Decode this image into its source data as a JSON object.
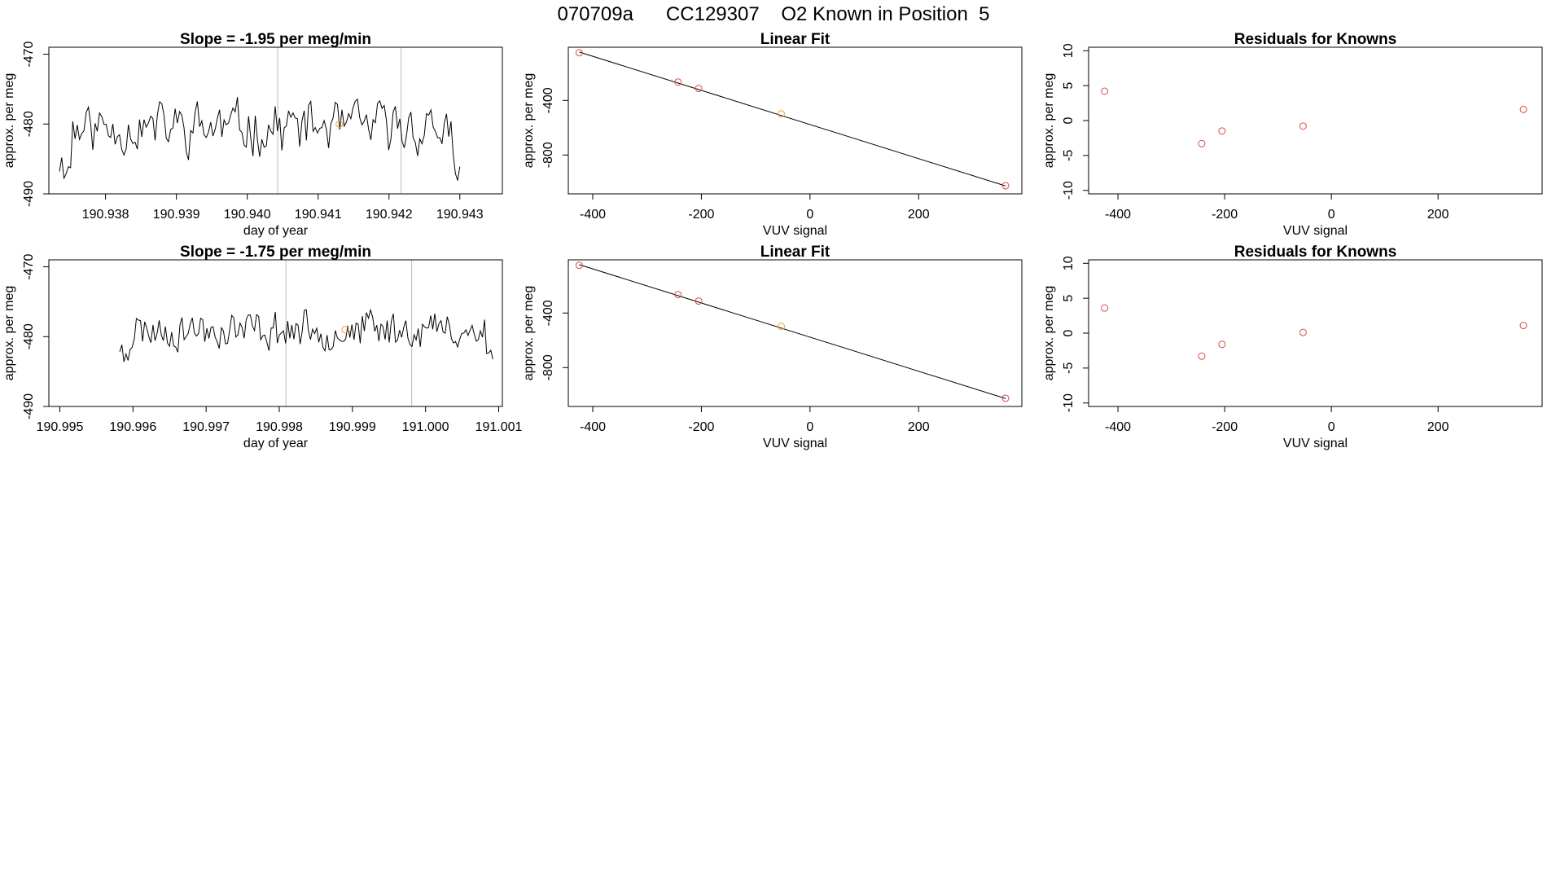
{
  "figure_title": "070709a      CC129307    O2 Known in Position  5",
  "colors": {
    "line": "#000000",
    "point": "#d94a4a",
    "highlight": "#f0a030",
    "marker_line": "#bbbbbb",
    "frame": "#000000"
  },
  "chart_data": [
    {
      "id": "ts1",
      "type": "line",
      "title": "Slope =  -1.95  per meg/min",
      "xlabel": "day of year",
      "ylabel": "approx. per meg",
      "xlim": [
        190.9372,
        190.9436
      ],
      "ylim": [
        -490,
        -469
      ],
      "xticks": [
        190.938,
        190.939,
        190.94,
        190.941,
        190.942,
        190.943
      ],
      "xtick_labels": [
        "190.938",
        "190.939",
        "190.940",
        "190.941",
        "190.942",
        "190.943"
      ],
      "yticks": [
        -470,
        -480,
        -490
      ],
      "ytick_labels": [
        "-470",
        "-480",
        "-490"
      ],
      "x_start": 190.93735,
      "x_end": 190.943,
      "vlines": [
        190.94043,
        190.94217
      ],
      "highlight_point": {
        "x": 190.9413,
        "y": -480.0
      },
      "series_seed": 11,
      "series_mean": -480.5,
      "series_amp": 4.8
    },
    {
      "id": "fit1",
      "type": "scatter",
      "title": "Linear Fit",
      "xlabel": "VUV signal",
      "ylabel": "approx. per meg",
      "xlim": [
        -445,
        390
      ],
      "ylim": [
        -1085,
        -10
      ],
      "xticks": [
        -400,
        -200,
        0,
        200
      ],
      "xtick_labels": [
        "-400",
        "-200",
        "0",
        "200"
      ],
      "yticks": [
        -400,
        -800
      ],
      "ytick_labels": [
        "-400",
        "-800"
      ],
      "points": [
        {
          "x": -425,
          "y": -50
        },
        {
          "x": -243,
          "y": -265
        },
        {
          "x": -205,
          "y": -312
        },
        {
          "x": -53,
          "y": -498,
          "highlight": true
        },
        {
          "x": 360,
          "y": -1025
        }
      ],
      "fit_line": {
        "x0": -425,
        "y0": -45,
        "x1": 360,
        "y1": -1027
      }
    },
    {
      "id": "res1",
      "type": "scatter",
      "title": "Residuals for Knowns",
      "xlabel": "VUV signal",
      "ylabel": "approx. per meg",
      "xlim": [
        -455,
        395
      ],
      "ylim": [
        -10.5,
        10.5
      ],
      "xticks": [
        -400,
        -200,
        0,
        200
      ],
      "xtick_labels": [
        "-400",
        "-200",
        "0",
        "200"
      ],
      "yticks": [
        10,
        5,
        0,
        -5,
        -10
      ],
      "ytick_labels": [
        "10",
        "5",
        "0",
        "-5",
        "-10"
      ],
      "points": [
        {
          "x": -425,
          "y": 4.2
        },
        {
          "x": -243,
          "y": -3.3
        },
        {
          "x": -205,
          "y": -1.5
        },
        {
          "x": -53,
          "y": -0.8
        },
        {
          "x": 360,
          "y": 1.6
        }
      ]
    },
    {
      "id": "ts2",
      "type": "line",
      "title": "Slope =  -1.75  per meg/min",
      "xlabel": "day of year",
      "ylabel": "approx. per meg",
      "xlim": [
        190.99485,
        191.00105
      ],
      "ylim": [
        -490,
        -469
      ],
      "xticks": [
        190.995,
        190.996,
        190.997,
        190.998,
        190.999,
        191.0,
        191.001
      ],
      "xtick_labels": [
        "190.995",
        "190.996",
        "190.997",
        "190.998",
        "190.999",
        "191.000",
        "191.001"
      ],
      "yticks": [
        -470,
        -480,
        -490
      ],
      "ytick_labels": [
        "-470",
        "-480",
        "-490"
      ],
      "x_start": 190.99582,
      "x_end": 191.00092,
      "vlines": [
        190.99809,
        190.99981
      ],
      "highlight_point": {
        "x": 190.9989,
        "y": -479.0
      },
      "series_seed": 23,
      "series_mean": -479.0,
      "series_amp": 3.4
    },
    {
      "id": "fit2",
      "type": "scatter",
      "title": "Linear Fit",
      "xlabel": "VUV signal",
      "ylabel": "approx. per meg",
      "xlim": [
        -445,
        390
      ],
      "ylim": [
        -1085,
        -10
      ],
      "xticks": [
        -400,
        -200,
        0,
        200
      ],
      "xtick_labels": [
        "-400",
        "-200",
        "0",
        "200"
      ],
      "yticks": [
        -400,
        -800
      ],
      "ytick_labels": [
        "-400",
        "-800"
      ],
      "points": [
        {
          "x": -425,
          "y": -50
        },
        {
          "x": -243,
          "y": -265
        },
        {
          "x": -205,
          "y": -312
        },
        {
          "x": -53,
          "y": -498,
          "highlight": true
        },
        {
          "x": 360,
          "y": -1025
        }
      ],
      "fit_line": {
        "x0": -425,
        "y0": -45,
        "x1": 360,
        "y1": -1027
      }
    },
    {
      "id": "res2",
      "type": "scatter",
      "title": "Residuals for Knowns",
      "xlabel": "VUV signal",
      "ylabel": "approx. per meg",
      "xlim": [
        -455,
        395
      ],
      "ylim": [
        -10.5,
        10.5
      ],
      "xticks": [
        -400,
        -200,
        0,
        200
      ],
      "xtick_labels": [
        "-400",
        "-200",
        "0",
        "200"
      ],
      "yticks": [
        10,
        5,
        0,
        -5,
        -10
      ],
      "ytick_labels": [
        "10",
        "5",
        "0",
        "-5",
        "-10"
      ],
      "points": [
        {
          "x": -425,
          "y": 3.6
        },
        {
          "x": -243,
          "y": -3.3
        },
        {
          "x": -205,
          "y": -1.6
        },
        {
          "x": -53,
          "y": 0.1
        },
        {
          "x": 360,
          "y": 1.1
        }
      ]
    }
  ]
}
